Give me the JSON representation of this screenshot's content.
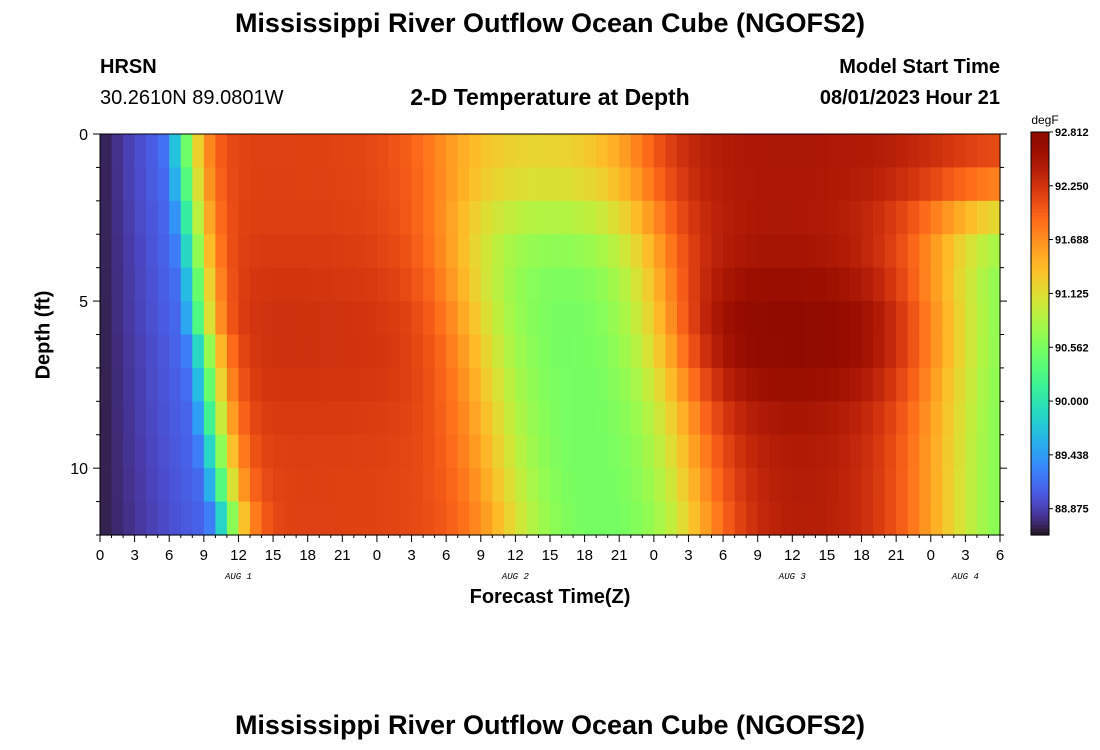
{
  "header": {
    "title": "Mississippi River Outflow Ocean Cube (NGOFS2)",
    "station_code": "HRSN",
    "station_coords": "30.2610N  89.0801W",
    "plot_title": "2-D Temperature at Depth",
    "model_start_label": "Model Start Time",
    "model_start_value": "08/01/2023 Hour 21"
  },
  "footer": {
    "repeated_title": "Mississippi River Outflow Ocean Cube (NGOFS2)"
  },
  "chart_data": {
    "type": "heatmap",
    "title": "2-D Temperature at Depth",
    "xlabel": "Forecast Time(Z)",
    "ylabel": "Depth (ft)",
    "x_hours_from_aug1_00z": [
      0,
      78
    ],
    "x_tick_labels": [
      "0",
      "3",
      "6",
      "9",
      "12",
      "15",
      "18",
      "21",
      "0",
      "3",
      "6",
      "9",
      "12",
      "15",
      "18",
      "21",
      "0",
      "3",
      "6",
      "9",
      "12",
      "15",
      "18",
      "21",
      "0",
      "3",
      "6"
    ],
    "day_labels": [
      {
        "label": "AUG 1",
        "hour": 12
      },
      {
        "label": "AUG 2",
        "hour": 36
      },
      {
        "label": "AUG 3",
        "hour": 60
      },
      {
        "label": "AUG 4",
        "hour": 75
      }
    ],
    "y_range_ft": [
      0,
      12
    ],
    "y_tick_labels": [
      0,
      5,
      10
    ],
    "y_reversed": true,
    "depth_levels_ft": [
      0.5,
      1.5,
      2.5,
      3.5,
      4.5,
      5.5,
      6.5,
      7.5,
      8.5,
      9.5,
      10.5,
      11.5
    ],
    "time_step_hours": 1,
    "colorbar": {
      "unit": "degF",
      "min": 88.6,
      "max": 92.812,
      "tick_labels": [
        "92.812",
        "92.250",
        "91.688",
        "91.125",
        "90.562",
        "90.000",
        "89.438",
        "88.875"
      ],
      "tick_values": [
        92.812,
        92.25,
        91.688,
        91.125,
        90.562,
        90.0,
        89.438,
        88.875
      ],
      "colormap": "turbo"
    },
    "field_model": {
      "minimum_center_hour_by_depth": [
        5.0,
        5.2,
        5.5,
        5.8,
        6.1,
        6.3,
        6.8,
        7.1,
        7.4,
        7.8,
        8.2,
        8.8
      ],
      "front_transition_width_hours": 3.2,
      "peak_hours": {
        "first": 21,
        "second": 66
      },
      "trough_center_hour_surface": 37,
      "trough_center_hour_bottom": 42,
      "late_cooling_hour": 75
    }
  }
}
